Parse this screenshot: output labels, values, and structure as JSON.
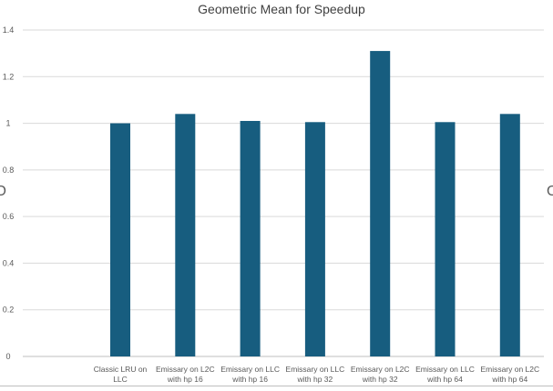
{
  "chart_data": {
    "type": "bar",
    "title": "Geometric Mean for Speedup",
    "xlabel": "",
    "ylabel": "",
    "categories": [
      [
        "Classic LRU on",
        "LLC"
      ],
      [
        "Emissary on L2C",
        "with hp 16"
      ],
      [
        "Emissary on LLC",
        "with hp 16"
      ],
      [
        "Emissary on LLC",
        "with hp 32"
      ],
      [
        "Emissary on L2C",
        "with hp 32"
      ],
      [
        "Emissary on LLC",
        "with hp 64"
      ],
      [
        "Emissary on L2C",
        "with hp 64"
      ]
    ],
    "values": [
      1.0,
      1.04,
      1.01,
      1.005,
      1.31,
      1.005,
      1.04
    ],
    "ylim": [
      0,
      1.4
    ],
    "yticks": [
      "0",
      "0.2",
      "0.4",
      "0.6",
      "0.8",
      "1",
      "1.2",
      "1.4"
    ],
    "grid": true,
    "legend": "none",
    "colors": {
      "bar": "#175d7f",
      "grid": "#d9d9d9",
      "axis": "#bfbfbf"
    }
  }
}
